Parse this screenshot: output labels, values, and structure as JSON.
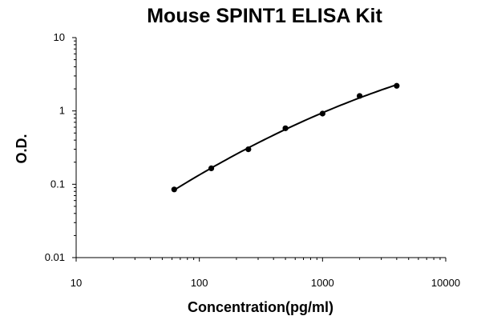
{
  "chart_data": {
    "type": "scatter",
    "title": "Mouse SPINT1 ELISA Kit",
    "xlabel": "Concentration(pg/ml)",
    "ylabel": "O.D.",
    "xscale": "log",
    "yscale": "log",
    "xlim": [
      10,
      10000
    ],
    "ylim": [
      0.01,
      10
    ],
    "x_ticks": [
      "10",
      "100",
      "1000",
      "10000"
    ],
    "y_ticks": [
      "0.01",
      "0.1",
      "1",
      "10"
    ],
    "grid": false,
    "legend": "none",
    "series": [
      {
        "points": [
          {
            "x": 62.5,
            "y": 0.085
          },
          {
            "x": 125,
            "y": 0.165
          },
          {
            "x": 250,
            "y": 0.3
          },
          {
            "x": 500,
            "y": 0.58
          },
          {
            "x": 1000,
            "y": 0.92
          },
          {
            "x": 2000,
            "y": 1.6
          },
          {
            "x": 4000,
            "y": 2.2
          }
        ],
        "fit_curve": true
      }
    ]
  }
}
